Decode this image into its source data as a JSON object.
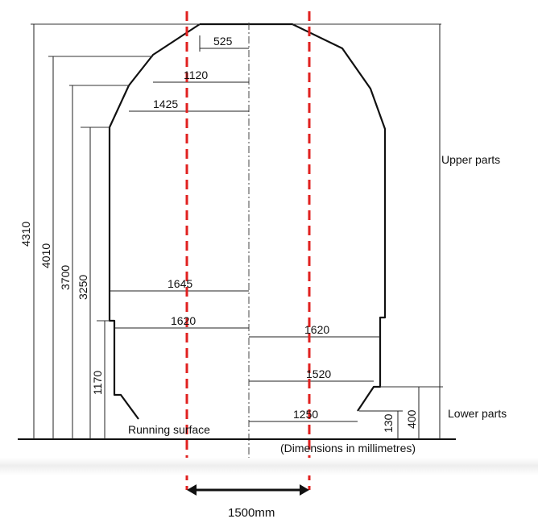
{
  "figure": {
    "dimensions": {
      "d4310": "4310",
      "d4010": "4010",
      "d3700": "3700",
      "d3250": "3250",
      "d1170": "1170",
      "d525": "525",
      "d1120": "1120",
      "d1425": "1425",
      "d1645": "1645",
      "d1620_left": "1620",
      "d1620_right": "1620",
      "d1520": "1520",
      "d1250": "1250",
      "d400": "400",
      "d130": "130"
    },
    "labels": {
      "upper_parts": "Upper parts",
      "lower_parts": "Lower parts",
      "running_surface": "Running surface",
      "units_note": "(Dimensions in millimetres)",
      "gauge_width": "1500mm"
    },
    "colors": {
      "outline": "#111111",
      "gauge_lines": "#e0201f",
      "dimension_lines": "#222222"
    }
  }
}
